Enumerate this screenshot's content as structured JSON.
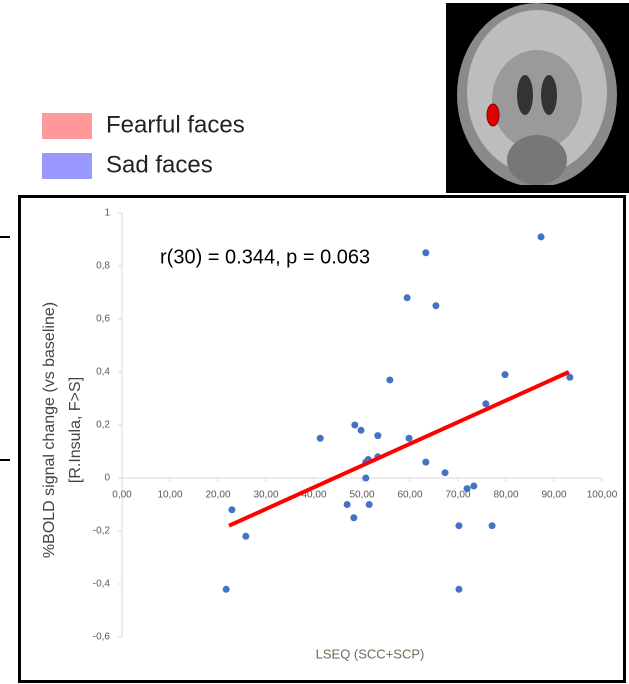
{
  "chart_data": {
    "type": "scatter",
    "legend": [
      {
        "name": "Fearful faces",
        "color": "#ff9999"
      },
      {
        "name": "Sad faces",
        "color": "#9999ff"
      }
    ],
    "annotation": "r(30) = 0.344, p = 0.063",
    "x_label": "LSEQ (SCC+SCP)",
    "y_label": [
      "%BOLD signal change (vs baseline)",
      "[R.Insula,  F>S]"
    ],
    "color": "#4472c4",
    "x": [
      87.3,
      63.3,
      59.4,
      65.4,
      79.8,
      93.3,
      55.8,
      75.8,
      48.5,
      49.8,
      41.3,
      53.3,
      59.8,
      53.3,
      51.3,
      50.8,
      63.3,
      67.3,
      50.8,
      71.9,
      73.3,
      46.9,
      51.5,
      22.9,
      48.3,
      70.2,
      77.1,
      25.8,
      21.7,
      70.2
    ],
    "values": [
      0.91,
      0.85,
      0.68,
      0.65,
      0.39,
      0.38,
      0.37,
      0.28,
      0.2,
      0.18,
      0.15,
      0.16,
      0.15,
      0.08,
      0.07,
      0.06,
      0.06,
      0.02,
      0.0,
      -0.04,
      -0.03,
      -0.1,
      -0.1,
      -0.12,
      -0.15,
      -0.18,
      -0.18,
      -0.22,
      -0.42,
      -0.42
    ],
    "trend": {
      "color": "#ff0000",
      "x": [
        22.3,
        93.1
      ],
      "values": [
        -0.18,
        0.4
      ]
    },
    "xlim": [
      0,
      100
    ],
    "ylim": [
      -0.6,
      1
    ],
    "xticks": [
      {
        "value": 0,
        "label": "0,00"
      },
      {
        "value": 10,
        "label": "10,00"
      },
      {
        "value": 20,
        "label": "20,00"
      },
      {
        "value": 30,
        "label": "30,00"
      },
      {
        "value": 40,
        "label": "40,00"
      },
      {
        "value": 50,
        "label": "50,00"
      },
      {
        "value": 60,
        "label": "60,00"
      },
      {
        "value": 70,
        "label": "70,00"
      },
      {
        "value": 80,
        "label": "80,00"
      },
      {
        "value": 90,
        "label": "90,00"
      },
      {
        "value": 100,
        "label": "100,00"
      }
    ],
    "yticks": [
      {
        "value": -0.6,
        "label": "-0,6"
      },
      {
        "value": -0.4,
        "label": "-0,4"
      },
      {
        "value": -0.2,
        "label": "-0,2"
      },
      0,
      {
        "value": 0.2,
        "label": "0,2"
      },
      {
        "value": 0.4,
        "label": "0,4"
      },
      {
        "value": 0.6,
        "label": "0,6"
      },
      {
        "value": 0.8,
        "label": "0,8"
      },
      1
    ]
  }
}
